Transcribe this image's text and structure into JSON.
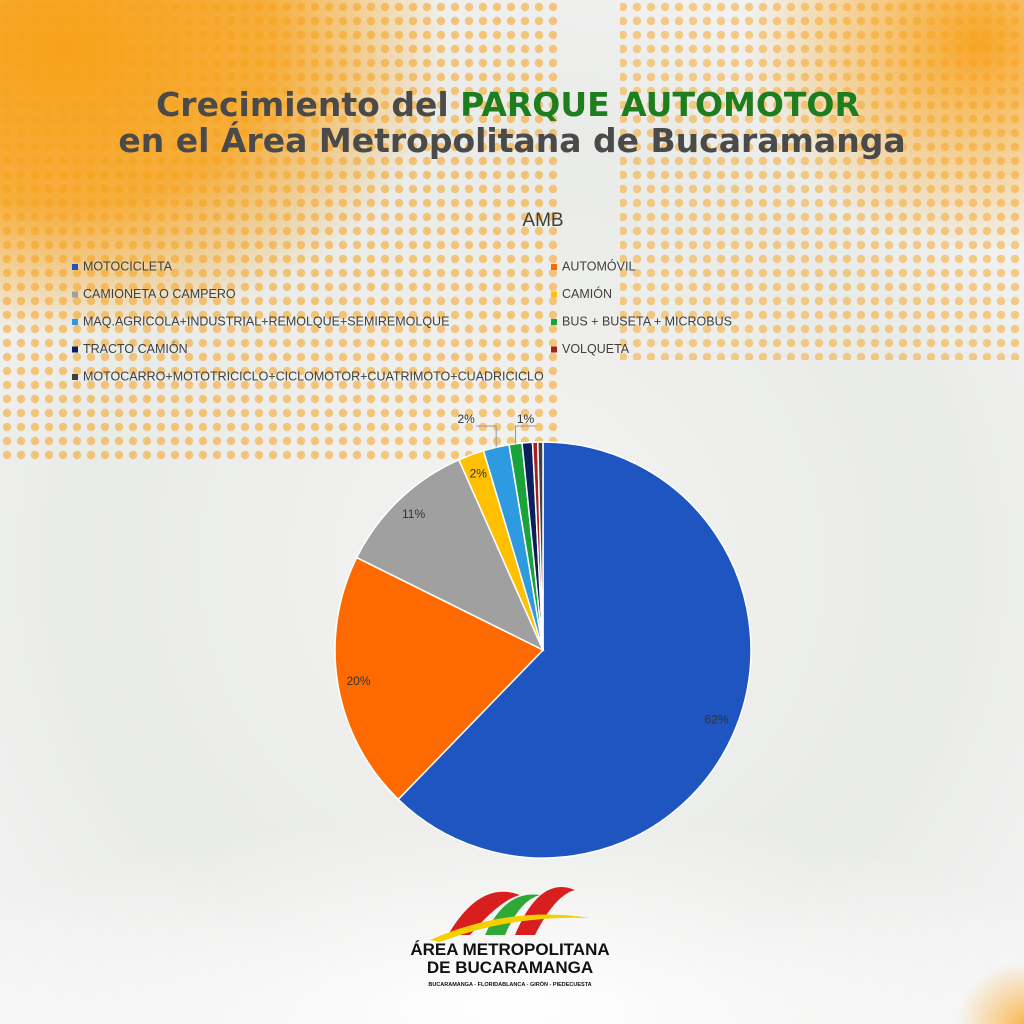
{
  "header": {
    "title_part1": "Crecimiento del",
    "title_highlight": "PARQUE AUTOMOTOR",
    "title_line2": "en el Área Metropolitana de Bucaramanga"
  },
  "chart_data": {
    "type": "pie",
    "title": "AMB",
    "categories": [
      "MOTOCICLETA",
      "AUTOMÓVIL",
      "CAMIONETA O CAMPERO",
      "CAMIÓN",
      "MAQ.AGRICOLA+INDUSTRIAL+REMOLQUE+SEMIREMOLQUE",
      "BUS + BUSETA + MICROBUS",
      "TRACTO CAMIÓN",
      "VOLQUETA",
      "MOTOCARRO+MOTOTRICICLO+CICLOMOTOR+CUATRIMOTO+CUADRICICLO"
    ],
    "values": [
      62,
      20,
      11,
      2,
      2,
      1,
      0.8,
      0.4,
      0.4
    ],
    "value_labels": [
      "62%",
      "20%",
      "11%",
      "2%",
      "2%",
      "1%",
      null,
      null,
      null
    ],
    "colors": [
      "#1f55c0",
      "#ff6a00",
      "#a0a0a0",
      "#ffc000",
      "#2e9be0",
      "#1aa33a",
      "#0a1f5c",
      "#a32020",
      "#404040"
    ],
    "legend": "top"
  },
  "logo": {
    "line1": "ÁREA METROPOLITANA",
    "line2": "DE BUCARAMANGA",
    "line3": "BUCARAMANGA - FLORIDABLANCA - GIRÓN - PIEDECUESTA"
  }
}
